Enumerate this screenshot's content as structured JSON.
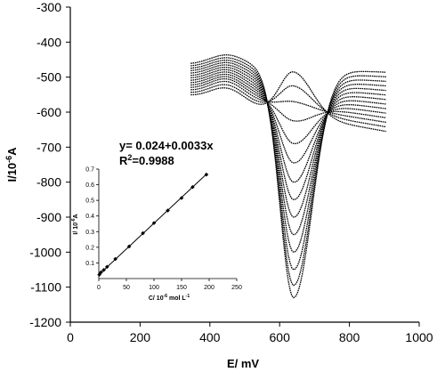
{
  "chart_data": [
    {
      "type": "line",
      "title": "",
      "xlabel": "E/ mV",
      "ylabel": "I/10-6A",
      "ylabel_parts": {
        "base": "I/10",
        "sup": "-6",
        "tail": "A"
      },
      "xlim": [
        0,
        1000
      ],
      "ylim": [
        -1200,
        -300
      ],
      "xticks": [
        0,
        200,
        400,
        600,
        800,
        1000
      ],
      "yticks": [
        -300,
        -400,
        -500,
        -600,
        -700,
        -800,
        -900,
        -1000,
        -1100,
        -1200
      ],
      "xtick_labels": [
        "0",
        "200",
        "400",
        "600",
        "800",
        "1000"
      ],
      "ytick_labels": [
        "-300",
        "-400",
        "-500",
        "-600",
        "-700",
        "-800",
        "-900",
        "-1000",
        "-1100",
        "-1200"
      ],
      "grid": false,
      "legend": "none",
      "curve_x_range": [
        345,
        905
      ],
      "peak_potential_mV": 640,
      "curves": [
        {
          "start": -555,
          "end": -655,
          "peak": -485
        },
        {
          "start": -548,
          "end": -642,
          "peak": -525
        },
        {
          "start": -541,
          "end": -629,
          "peak": -570
        },
        {
          "start": -534,
          "end": -616,
          "peak": -625
        },
        {
          "start": -527,
          "end": -603,
          "peak": -690
        },
        {
          "start": -520,
          "end": -590,
          "peak": -745
        },
        {
          "start": -513,
          "end": -577,
          "peak": -800
        },
        {
          "start": -506,
          "end": -564,
          "peak": -850
        },
        {
          "start": -499,
          "end": -551,
          "peak": -900
        },
        {
          "start": -492,
          "end": -538,
          "peak": -950
        },
        {
          "start": -485,
          "end": -525,
          "peak": -1000
        },
        {
          "start": -478,
          "end": -512,
          "peak": -1050
        },
        {
          "start": -471,
          "end": -499,
          "peak": -1095
        },
        {
          "start": -464,
          "end": -486,
          "peak": -1130
        }
      ]
    },
    {
      "type": "scatter",
      "title": "",
      "xlabel": "C/ 10-6 mol L-1",
      "xlabel_parts": {
        "a": "C/ 10",
        "sup1": "-6",
        "b": " mol L",
        "sup2": "-1"
      },
      "ylabel": "I/ 10-6A",
      "ylabel_parts": {
        "base": "I/ 10",
        "sup": "-6",
        "tail": "A"
      },
      "xlim": [
        0,
        250
      ],
      "ylim": [
        0,
        0.7
      ],
      "xticks": [
        0,
        50,
        100,
        150,
        200,
        250
      ],
      "yticks": [
        0.1,
        0.2,
        0.3,
        0.4,
        0.5,
        0.6,
        0.7
      ],
      "xtick_labels": [
        "0",
        "50",
        "100",
        "150",
        "200",
        "250"
      ],
      "ytick_labels": [
        "0.1",
        "0.2",
        "0.3",
        "0.4",
        "0.5",
        "0.6",
        "0.7"
      ],
      "annotation_equation": "y= 0.024+0.0033x",
      "annotation_r2": {
        "base": "R",
        "sup": "2",
        "tail": "=0.9988"
      },
      "x": [
        1,
        4,
        9,
        15,
        30,
        55,
        80,
        100,
        125,
        150,
        170,
        195
      ],
      "y": [
        0.025,
        0.04,
        0.055,
        0.075,
        0.125,
        0.205,
        0.29,
        0.355,
        0.435,
        0.515,
        0.585,
        0.665
      ],
      "fit": {
        "intercept": 0.024,
        "slope": 0.0033
      }
    }
  ]
}
